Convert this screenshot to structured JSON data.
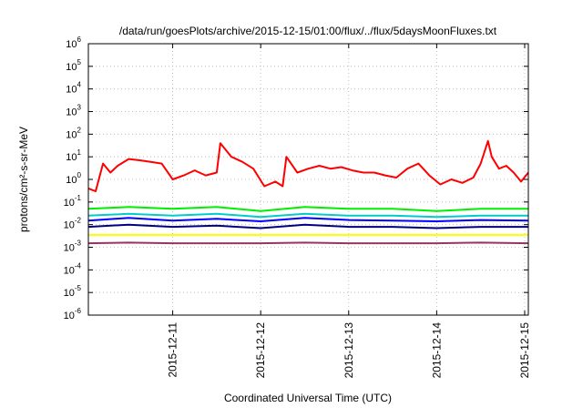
{
  "chart_data": {
    "type": "line",
    "title": "/data/run/goesPlots/archive/2015-12-15/01:00/flux/../flux/5daysMoonFluxes.txt",
    "xlabel": "Coordinated Universal Time (UTC)",
    "ylabel": "protons/cm²-s-sr-MeV",
    "y_scale": "log",
    "ylim": [
      "1e-6",
      "1e6"
    ],
    "y_ticks": [
      {
        "base": "10",
        "exp": "-6",
        "value": -6
      },
      {
        "base": "10",
        "exp": "-5",
        "value": -5
      },
      {
        "base": "10",
        "exp": "-4",
        "value": -4
      },
      {
        "base": "10",
        "exp": "-3",
        "value": -3
      },
      {
        "base": "10",
        "exp": "-2",
        "value": -2
      },
      {
        "base": "10",
        "exp": "-1",
        "value": -1
      },
      {
        "base": "10",
        "exp": "0",
        "value": 0
      },
      {
        "base": "10",
        "exp": "1",
        "value": 1
      },
      {
        "base": "10",
        "exp": "2",
        "value": 2
      },
      {
        "base": "10",
        "exp": "3",
        "value": 3
      },
      {
        "base": "10",
        "exp": "4",
        "value": 4
      },
      {
        "base": "10",
        "exp": "5",
        "value": 5
      },
      {
        "base": "10",
        "exp": "6",
        "value": 6
      }
    ],
    "xlim": [
      "2015-12-10 01:00",
      "2015-12-15 01:00"
    ],
    "x_ticks": [
      {
        "label": "2015-12-11",
        "value": "2015-12-11"
      },
      {
        "label": "2015-12-12",
        "value": "2015-12-12"
      },
      {
        "label": "2015-12-13",
        "value": "2015-12-13"
      },
      {
        "label": "2015-12-14",
        "value": "2015-12-14"
      },
      {
        "label": "2015-12-15",
        "value": "2015-12-15"
      }
    ],
    "grid": true,
    "series": [
      {
        "color": "#ff0000",
        "x": [
          "2015-12-10 01:00",
          "2015-12-10 03:00",
          "2015-12-10 05:00",
          "2015-12-10 07:00",
          "2015-12-10 09:00",
          "2015-12-10 12:00",
          "2015-12-10 15:00",
          "2015-12-10 18:00",
          "2015-12-10 21:00",
          "2015-12-11 00:00",
          "2015-12-11 03:00",
          "2015-12-11 06:00",
          "2015-12-11 09:00",
          "2015-12-11 12:00",
          "2015-12-11 13:00",
          "2015-12-11 16:00",
          "2015-12-11 19:00",
          "2015-12-11 22:00",
          "2015-12-12 01:00",
          "2015-12-12 04:00",
          "2015-12-12 06:00",
          "2015-12-12 07:00",
          "2015-12-12 10:00",
          "2015-12-12 13:00",
          "2015-12-12 16:00",
          "2015-12-12 19:00",
          "2015-12-12 22:00",
          "2015-12-13 01:00",
          "2015-12-13 04:00",
          "2015-12-13 07:00",
          "2015-12-13 10:00",
          "2015-12-13 13:00",
          "2015-12-13 16:00",
          "2015-12-13 19:00",
          "2015-12-13 22:00",
          "2015-12-14 01:00",
          "2015-12-14 04:00",
          "2015-12-14 07:00",
          "2015-12-14 10:00",
          "2015-12-14 12:00",
          "2015-12-14 14:00",
          "2015-12-14 15:00",
          "2015-12-14 17:00",
          "2015-12-14 19:00",
          "2015-12-14 21:00",
          "2015-12-14 23:00",
          "2015-12-15 01:00"
        ],
        "values": [
          0.4,
          0.3,
          5,
          2,
          4,
          8,
          7,
          6,
          5,
          1,
          1.5,
          2.5,
          1.5,
          2,
          40,
          10,
          6,
          3,
          0.5,
          0.8,
          0.5,
          10,
          2,
          3,
          4,
          3,
          3.5,
          2.5,
          2,
          2,
          1.5,
          1.2,
          3,
          5,
          1.5,
          0.6,
          1,
          0.7,
          1.2,
          5,
          50,
          10,
          3,
          4,
          2,
          0.8,
          2
        ]
      },
      {
        "color": "#00ee00",
        "x": [
          "2015-12-10 01:00",
          "2015-12-10 12:00",
          "2015-12-11 00:00",
          "2015-12-11 12:00",
          "2015-12-12 00:00",
          "2015-12-12 12:00",
          "2015-12-13 00:00",
          "2015-12-13 12:00",
          "2015-12-14 00:00",
          "2015-12-14 12:00",
          "2015-12-15 01:00"
        ],
        "values": [
          0.05,
          0.06,
          0.05,
          0.06,
          0.04,
          0.06,
          0.05,
          0.05,
          0.04,
          0.05,
          0.05
        ]
      },
      {
        "color": "#00cccc",
        "x": [
          "2015-12-10 01:00",
          "2015-12-10 12:00",
          "2015-12-11 00:00",
          "2015-12-11 12:00",
          "2015-12-12 00:00",
          "2015-12-12 12:00",
          "2015-12-13 00:00",
          "2015-12-13 12:00",
          "2015-12-14 00:00",
          "2015-12-14 12:00",
          "2015-12-15 01:00"
        ],
        "values": [
          0.025,
          0.03,
          0.025,
          0.03,
          0.022,
          0.03,
          0.025,
          0.025,
          0.022,
          0.025,
          0.025
        ]
      },
      {
        "color": "#0000ff",
        "x": [
          "2015-12-10 01:00",
          "2015-12-10 12:00",
          "2015-12-11 00:00",
          "2015-12-11 12:00",
          "2015-12-12 00:00",
          "2015-12-12 12:00",
          "2015-12-13 00:00",
          "2015-12-13 12:00",
          "2015-12-14 00:00",
          "2015-12-14 12:00",
          "2015-12-15 01:00"
        ],
        "values": [
          0.015,
          0.02,
          0.015,
          0.018,
          0.014,
          0.02,
          0.016,
          0.015,
          0.014,
          0.016,
          0.015
        ]
      },
      {
        "color": "#000080",
        "x": [
          "2015-12-10 01:00",
          "2015-12-10 12:00",
          "2015-12-11 00:00",
          "2015-12-11 12:00",
          "2015-12-12 00:00",
          "2015-12-12 12:00",
          "2015-12-13 00:00",
          "2015-12-13 12:00",
          "2015-12-14 00:00",
          "2015-12-14 12:00",
          "2015-12-15 01:00"
        ],
        "values": [
          0.008,
          0.01,
          0.008,
          0.009,
          0.007,
          0.01,
          0.008,
          0.008,
          0.007,
          0.008,
          0.008
        ]
      },
      {
        "color": "#ffff00",
        "x": [
          "2015-12-10 01:00",
          "2015-12-15 01:00"
        ],
        "values": [
          0.0035,
          0.0035
        ]
      },
      {
        "color": "#993366",
        "x": [
          "2015-12-10 01:00",
          "2015-12-10 12:00",
          "2015-12-11 00:00",
          "2015-12-11 12:00",
          "2015-12-12 00:00",
          "2015-12-12 12:00",
          "2015-12-13 00:00",
          "2015-12-13 12:00",
          "2015-12-14 00:00",
          "2015-12-14 12:00",
          "2015-12-15 01:00"
        ],
        "values": [
          0.0015,
          0.0016,
          0.0015,
          0.0015,
          0.0015,
          0.0016,
          0.0015,
          0.0015,
          0.0015,
          0.0016,
          0.0015
        ]
      }
    ]
  }
}
